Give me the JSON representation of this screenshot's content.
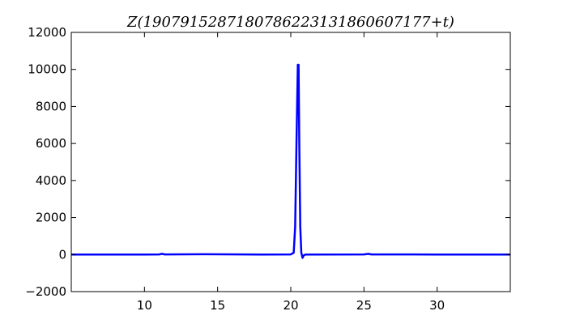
{
  "chart_data": {
    "type": "line",
    "title": "Z(190791528718078622313186060717​7+t)",
    "title_text": "Z(1907915287180786223131860607177+t)",
    "xlabel": "",
    "ylabel": "",
    "xlim": [
      5,
      35
    ],
    "ylim": [
      -2000,
      12000
    ],
    "xticks": [
      10,
      15,
      20,
      25,
      30
    ],
    "yticks": [
      -2000,
      0,
      2000,
      4000,
      6000,
      8000,
      10000,
      12000
    ],
    "ytick_labels": [
      "−2000",
      "0",
      "2000",
      "4000",
      "6000",
      "8000",
      "10000",
      "12000"
    ],
    "grid": false,
    "series": [
      {
        "color": "#0000ff",
        "x": [
          5,
          8,
          10,
          11,
          11.2,
          11.4,
          14,
          18,
          20.0,
          20.2,
          20.3,
          20.4,
          20.48,
          20.53,
          20.58,
          20.65,
          20.72,
          20.8,
          20.88,
          21.0,
          25,
          25.3,
          25.5,
          30,
          35
        ],
        "y": [
          0,
          5,
          0,
          10,
          40,
          10,
          15,
          5,
          10,
          100,
          1500,
          6500,
          10250,
          10250,
          6000,
          1500,
          100,
          -180,
          -50,
          0,
          10,
          40,
          10,
          5,
          0
        ]
      }
    ]
  }
}
